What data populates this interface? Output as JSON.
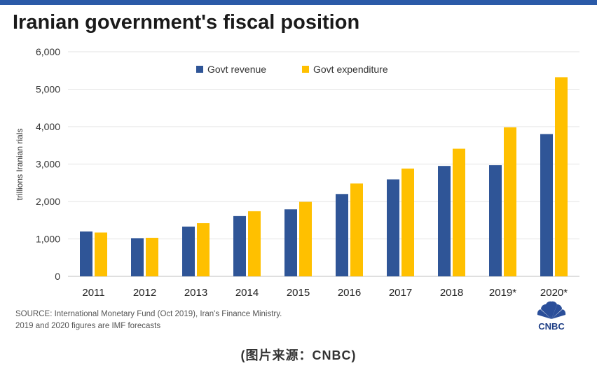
{
  "title": "Iranian government's fiscal position",
  "source_line1": "SOURCE: International Monetary Fund (Oct 2019), Iran's Finance Ministry.",
  "source_line2": "2019 and 2020 figures are IMF forecasts",
  "logo_text": "CNBC",
  "caption": "(图片来源：CNBC)",
  "colors": {
    "top_bar": "#2b5aa8",
    "revenue": "#2f5597",
    "expenditure": "#ffc000"
  },
  "chart_data": {
    "type": "bar",
    "categories": [
      "2011",
      "2012",
      "2013",
      "2014",
      "2015",
      "2016",
      "2017",
      "2018",
      "2019*",
      "2020*"
    ],
    "series": [
      {
        "name": "Govt revenue",
        "color": "#2f5597",
        "values": [
          1200,
          1020,
          1330,
          1610,
          1790,
          2200,
          2590,
          2950,
          2970,
          3800
        ]
      },
      {
        "name": "Govt expenditure",
        "color": "#ffc000",
        "values": [
          1170,
          1030,
          1420,
          1740,
          1990,
          2480,
          2880,
          3410,
          3980,
          5320
        ]
      }
    ],
    "ylabel": "trillions Iranian rials",
    "ylim": [
      0,
      6000
    ],
    "yticks": [
      0,
      1000,
      2000,
      3000,
      4000,
      5000,
      6000
    ],
    "ytick_labels": [
      "0",
      "1,000",
      "2,000",
      "3,000",
      "4,000",
      "5,000",
      "6,000"
    ],
    "grid": true,
    "legend_position": "top-center"
  }
}
